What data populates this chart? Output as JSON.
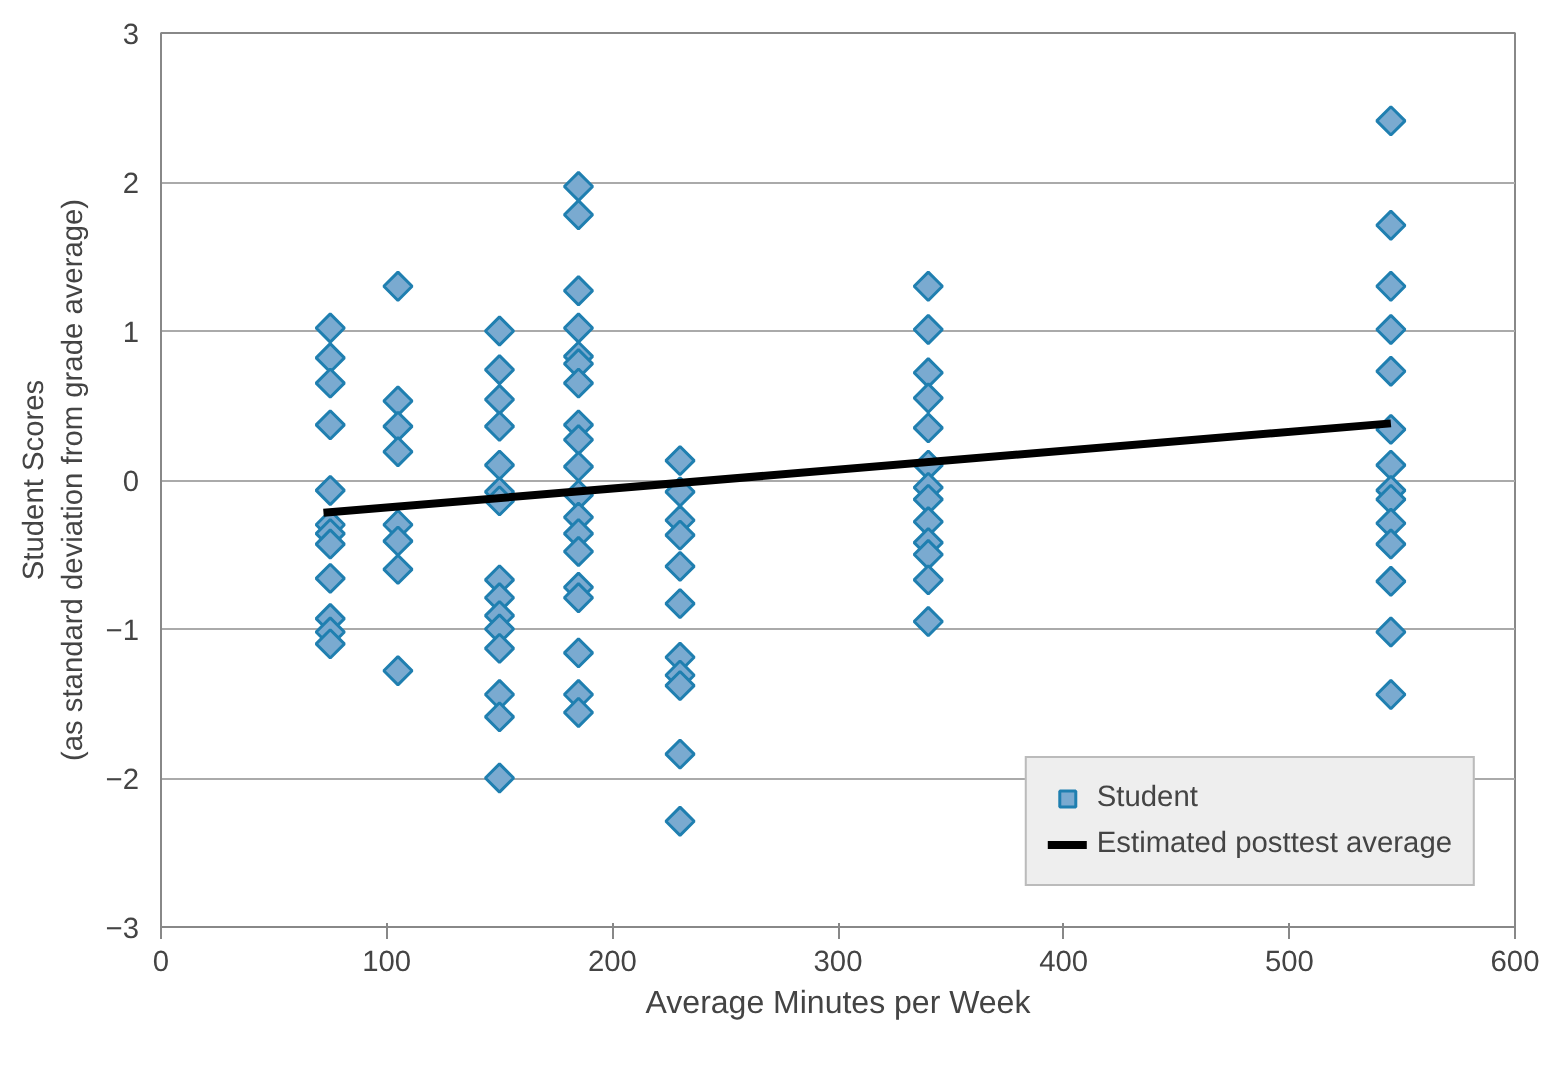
{
  "chart_data": {
    "type": "scatter",
    "xlabel": "Average Minutes per Week",
    "ylabel": "Student Scores\n(as standard deviation from grade average)",
    "xlim": [
      0,
      600
    ],
    "xticks": [
      0,
      100,
      200,
      300,
      400,
      500,
      600
    ],
    "ylim": [
      -3,
      3
    ],
    "yticks": [
      -3,
      -2,
      -1,
      0,
      1,
      2,
      3
    ],
    "grid": "y",
    "legend": "bottom right",
    "marker": "diamond",
    "series": [
      {
        "name": "Student",
        "color": "#7aaad0",
        "x": [
          75,
          75,
          75,
          75,
          75,
          75,
          75,
          75,
          75,
          75,
          75,
          75,
          105,
          105,
          105,
          105,
          105,
          105,
          105,
          105,
          150,
          150,
          150,
          150,
          150,
          150,
          150,
          150,
          150,
          150,
          150,
          150,
          150,
          150,
          150,
          185,
          185,
          185,
          185,
          185,
          185,
          185,
          185,
          185,
          185,
          185,
          185,
          185,
          185,
          185,
          185,
          185,
          185,
          185,
          230,
          230,
          230,
          230,
          230,
          230,
          230,
          230,
          230,
          230,
          230,
          340,
          340,
          340,
          340,
          340,
          340,
          340,
          340,
          340,
          340,
          340,
          340,
          340,
          545,
          545,
          545,
          545,
          545,
          545,
          545,
          545,
          545,
          545,
          545,
          545,
          545,
          545
        ],
        "values": [
          1.02,
          0.82,
          0.65,
          0.37,
          -0.07,
          -0.3,
          -0.36,
          -0.43,
          -0.66,
          -0.93,
          -1.02,
          -1.1,
          1.3,
          0.53,
          0.36,
          0.19,
          -0.3,
          -0.41,
          -0.6,
          -1.28,
          1.0,
          0.74,
          0.54,
          0.36,
          0.1,
          -0.08,
          -0.14,
          -0.67,
          -0.79,
          -0.91,
          -1.0,
          -1.13,
          -1.44,
          -1.59,
          -2.0,
          1.97,
          1.78,
          1.27,
          1.02,
          0.83,
          0.78,
          0.65,
          0.37,
          0.27,
          0.09,
          -0.1,
          -0.25,
          -0.36,
          -0.48,
          -0.72,
          -0.79,
          -1.16,
          -1.44,
          -1.56,
          0.13,
          -0.08,
          -0.27,
          -0.37,
          -0.58,
          -0.83,
          -1.19,
          -1.31,
          -1.38,
          -1.84,
          -2.29,
          1.3,
          1.01,
          0.72,
          0.55,
          0.35,
          0.1,
          -0.05,
          -0.13,
          -0.28,
          -0.42,
          -0.5,
          -0.67,
          -0.95,
          2.41,
          1.71,
          1.3,
          1.01,
          0.73,
          0.34,
          0.1,
          -0.07,
          -0.13,
          -0.29,
          -0.43,
          -0.68,
          -1.02,
          -1.44
        ]
      },
      {
        "name": "Estimated posttest average",
        "color": "#000000",
        "type": "line",
        "marker": "none",
        "x": [
          72,
          545
        ],
        "values": [
          -0.22,
          0.38
        ]
      }
    ]
  }
}
